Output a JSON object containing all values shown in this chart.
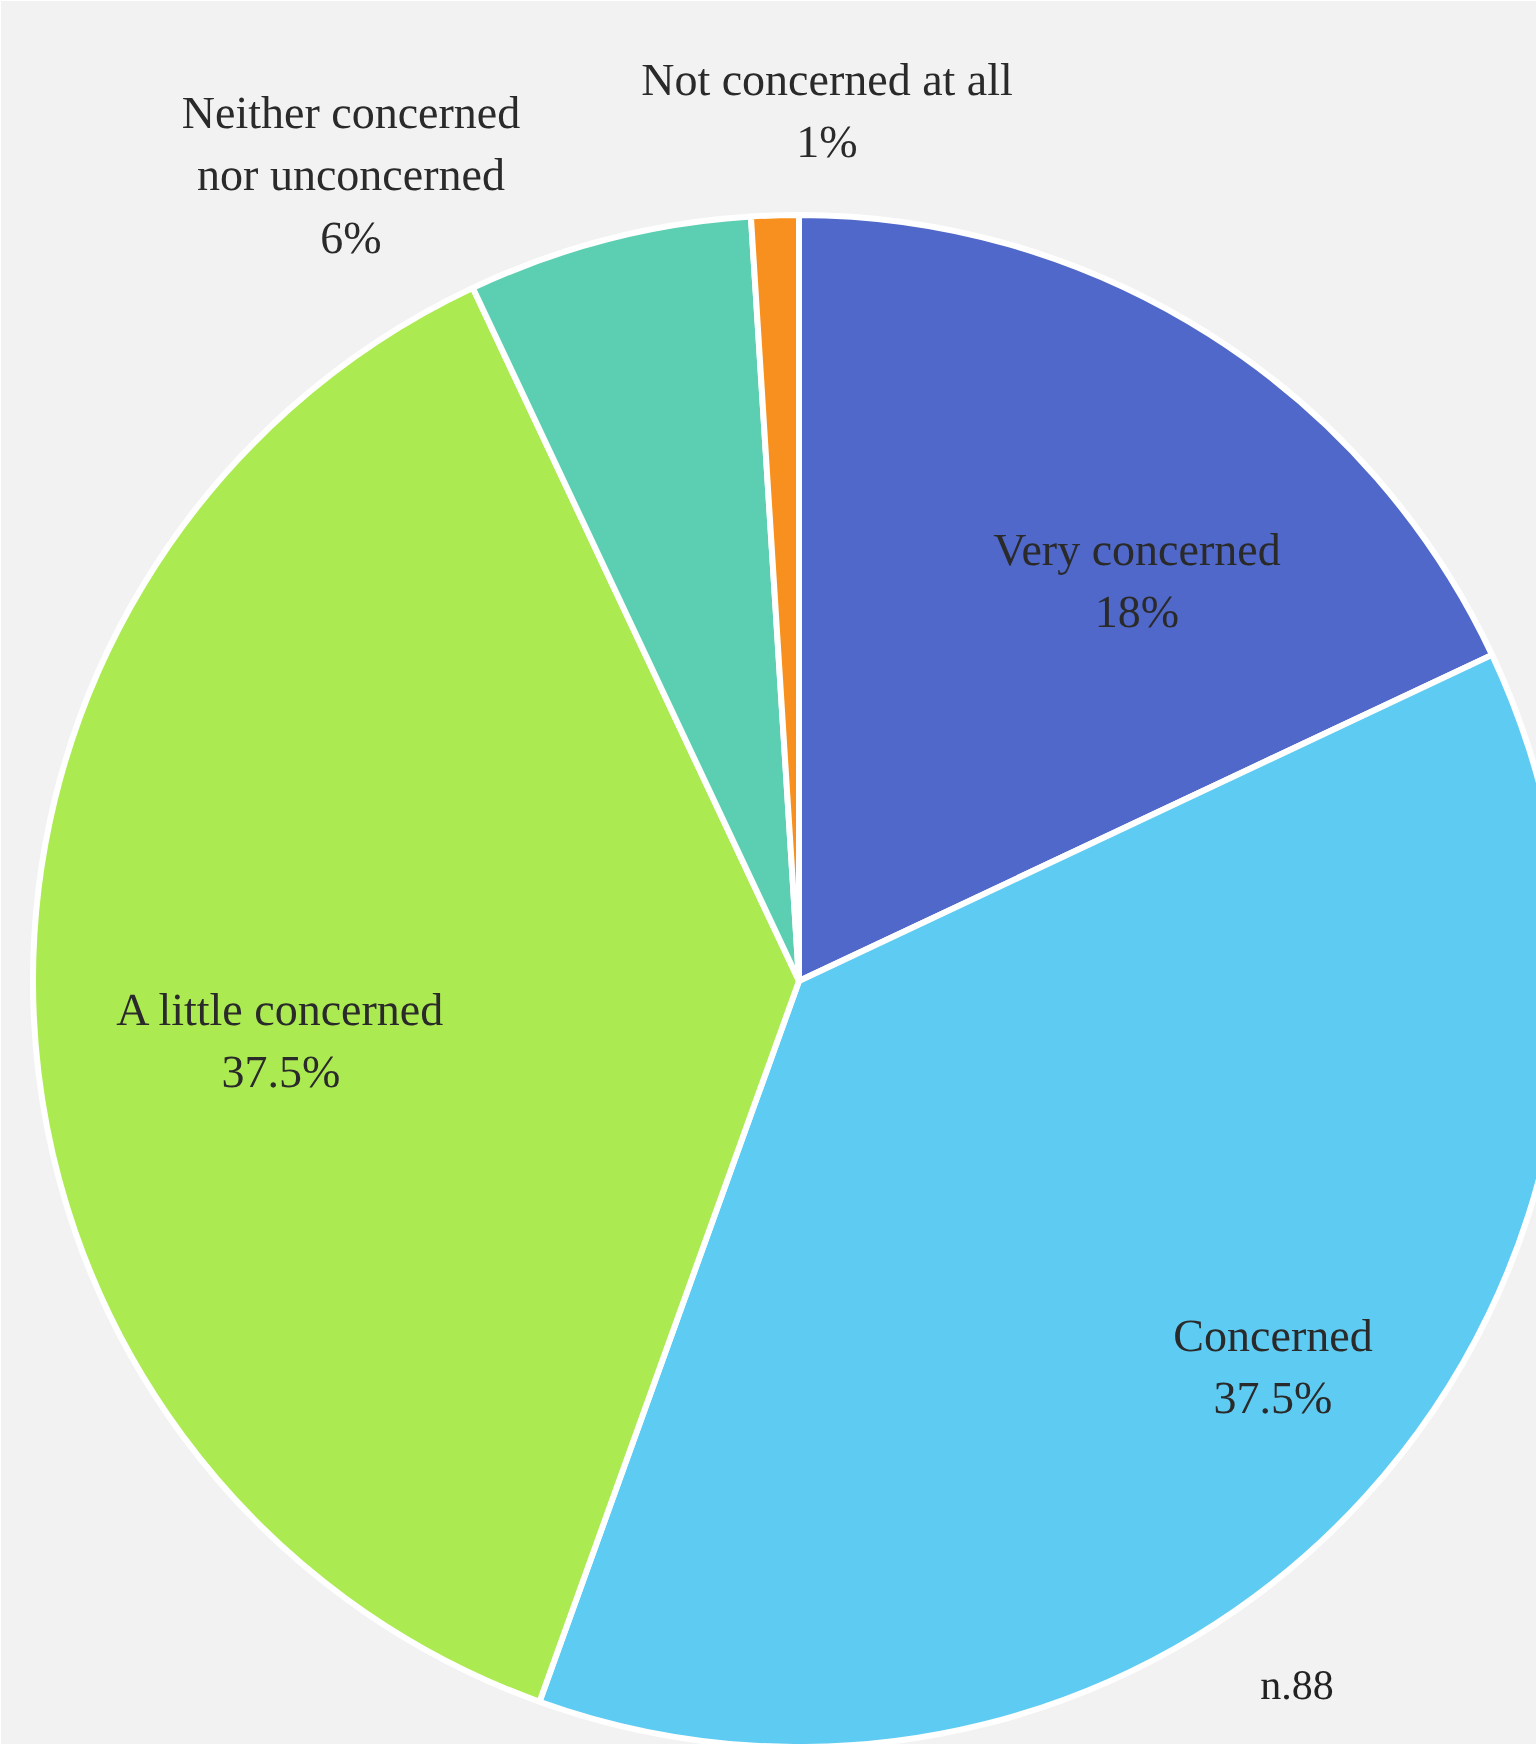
{
  "chart_data": {
    "type": "pie",
    "categories": [
      "Very concerned",
      "Concerned",
      "A little concerned",
      "Neither concerned nor unconcerned",
      "Not concerned at all"
    ],
    "values": [
      18,
      37.5,
      37.5,
      6,
      1
    ],
    "colors": [
      "#5068c9",
      "#5ecbf2",
      "#acea52",
      "#5ccfb2",
      "#f7901e"
    ],
    "data_labels": true,
    "value_labels": [
      "18%",
      "37.5%",
      "37.5%",
      "6%",
      "1%"
    ],
    "annotations": [
      "n.88"
    ]
  }
}
